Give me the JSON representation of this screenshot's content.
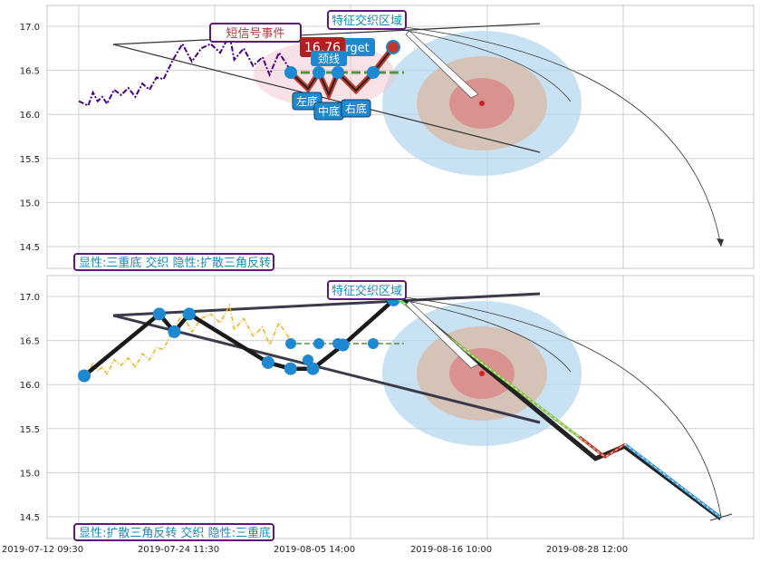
{
  "chart_data": [
    {
      "type": "line",
      "panel": "top",
      "ylim": [
        14.25,
        17.22
      ],
      "yticks": [
        "17.0",
        "16.5",
        "16.0",
        "15.5",
        "15.0",
        "14.5"
      ],
      "grid": true,
      "price_color": "#4b0082",
      "price_series": [
        {
          "x": 0,
          "y": 16.15
        },
        {
          "x": 4,
          "y": 16.1
        },
        {
          "x": 6,
          "y": 16.25
        },
        {
          "x": 8,
          "y": 16.15
        },
        {
          "x": 10,
          "y": 16.2
        },
        {
          "x": 12,
          "y": 16.12
        },
        {
          "x": 15,
          "y": 16.28
        },
        {
          "x": 18,
          "y": 16.22
        },
        {
          "x": 21,
          "y": 16.3
        },
        {
          "x": 24,
          "y": 16.2
        },
        {
          "x": 27,
          "y": 16.35
        },
        {
          "x": 30,
          "y": 16.28
        },
        {
          "x": 33,
          "y": 16.42
        },
        {
          "x": 36,
          "y": 16.4
        },
        {
          "x": 40,
          "y": 16.62
        },
        {
          "x": 44,
          "y": 16.8
        },
        {
          "x": 48,
          "y": 16.6
        },
        {
          "x": 52,
          "y": 16.75
        },
        {
          "x": 56,
          "y": 16.8
        },
        {
          "x": 60,
          "y": 16.7
        },
        {
          "x": 64,
          "y": 16.9
        },
        {
          "x": 66,
          "y": 16.62
        },
        {
          "x": 70,
          "y": 16.75
        },
        {
          "x": 74,
          "y": 16.55
        },
        {
          "x": 78,
          "y": 16.65
        },
        {
          "x": 81,
          "y": 16.45
        },
        {
          "x": 85,
          "y": 16.7
        },
        {
          "x": 88,
          "y": 16.58
        },
        {
          "x": 91,
          "y": 16.45
        }
      ],
      "events": {
        "short_signal": "短信号事件",
        "feature_zone": "特征交织区域",
        "target_label": "target",
        "target_value": "16.76",
        "neckline": "颈线",
        "left_bottom": "左底",
        "middle_bottom": "中底",
        "right_bottom": "右底"
      },
      "caption": "显性:三重底 交织 隐性:扩散三角反转"
    },
    {
      "type": "line",
      "panel": "bottom",
      "ylim": [
        14.25,
        17.22
      ],
      "yticks": [
        "17.0",
        "16.5",
        "16.0",
        "15.5",
        "15.0",
        "14.5"
      ],
      "grid": true,
      "price_color": "#f0b020",
      "xticks": [
        "2019-07-12 09:30",
        "2019-07-24 11:30",
        "2019-08-05 14:00",
        "2019-08-16 10:00",
        "2019-08-28 12:00"
      ],
      "pattern_points": [
        {
          "x": 0,
          "y": 16.1
        },
        {
          "x": 40,
          "y": 16.8
        },
        {
          "x": 48,
          "y": 16.6
        },
        {
          "x": 56,
          "y": 16.8
        },
        {
          "x": 98,
          "y": 16.25
        },
        {
          "x": 110,
          "y": 16.18
        },
        {
          "x": 122,
          "y": 16.18
        },
        {
          "x": 138,
          "y": 16.45
        },
        {
          "x": 165,
          "y": 16.96
        }
      ],
      "projection": [
        {
          "x": 165,
          "y": 16.96
        },
        {
          "x": 265,
          "y": 15.16
        },
        {
          "x": 280,
          "y": 15.3
        },
        {
          "x": 330,
          "y": 14.48
        }
      ],
      "feature_zone": "特征交织区域",
      "caption": "显性:扩散三角反转 交织 隐性:三重底"
    }
  ]
}
